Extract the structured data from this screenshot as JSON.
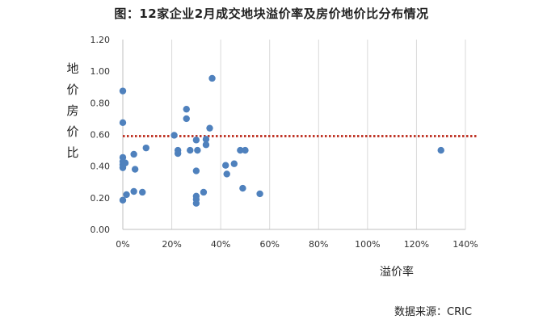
{
  "chart_data": {
    "type": "scatter",
    "title": "图：12家企业2月成交地块溢价率及房价地价比分布情况",
    "xlabel": "溢价率",
    "ylabel": "地价房价比",
    "source": "数据来源：CRIC",
    "xlim": [
      0,
      1.4
    ],
    "ylim": [
      0,
      1.2
    ],
    "xticks": [
      0,
      0.2,
      0.4,
      0.6,
      0.8,
      1.0,
      1.2,
      1.4
    ],
    "xtick_labels": [
      "0%",
      "20%",
      "40%",
      "60%",
      "80%",
      "100%",
      "120%",
      "140%"
    ],
    "yticks": [
      0,
      0.2,
      0.4,
      0.6,
      0.8,
      1.0,
      1.2
    ],
    "ytick_labels": [
      "0.00",
      "0.20",
      "0.40",
      "0.60",
      "0.80",
      "1.00",
      "1.20"
    ],
    "grid": "vertical",
    "reference_line": {
      "y": 0.59,
      "style": "dotted",
      "color": "#c0392b"
    },
    "point_color": "#4f81bd",
    "points": [
      [
        0.0,
        0.875
      ],
      [
        0.0,
        0.675
      ],
      [
        0.0,
        0.455
      ],
      [
        0.0,
        0.43
      ],
      [
        0.0,
        0.41
      ],
      [
        0.0,
        0.39
      ],
      [
        0.0,
        0.185
      ],
      [
        0.01,
        0.42
      ],
      [
        0.015,
        0.22
      ],
      [
        0.045,
        0.475
      ],
      [
        0.05,
        0.38
      ],
      [
        0.045,
        0.24
      ],
      [
        0.08,
        0.235
      ],
      [
        0.095,
        0.515
      ],
      [
        0.21,
        0.595
      ],
      [
        0.225,
        0.5
      ],
      [
        0.225,
        0.48
      ],
      [
        0.26,
        0.76
      ],
      [
        0.26,
        0.7
      ],
      [
        0.275,
        0.5
      ],
      [
        0.3,
        0.565
      ],
      [
        0.305,
        0.5
      ],
      [
        0.3,
        0.37
      ],
      [
        0.3,
        0.21
      ],
      [
        0.3,
        0.19
      ],
      [
        0.3,
        0.165
      ],
      [
        0.33,
        0.235
      ],
      [
        0.34,
        0.57
      ],
      [
        0.34,
        0.535
      ],
      [
        0.355,
        0.64
      ],
      [
        0.365,
        0.955
      ],
      [
        0.42,
        0.405
      ],
      [
        0.425,
        0.35
      ],
      [
        0.455,
        0.415
      ],
      [
        0.48,
        0.5
      ],
      [
        0.5,
        0.5
      ],
      [
        0.49,
        0.26
      ],
      [
        0.56,
        0.225
      ],
      [
        1.3,
        0.5
      ]
    ]
  }
}
